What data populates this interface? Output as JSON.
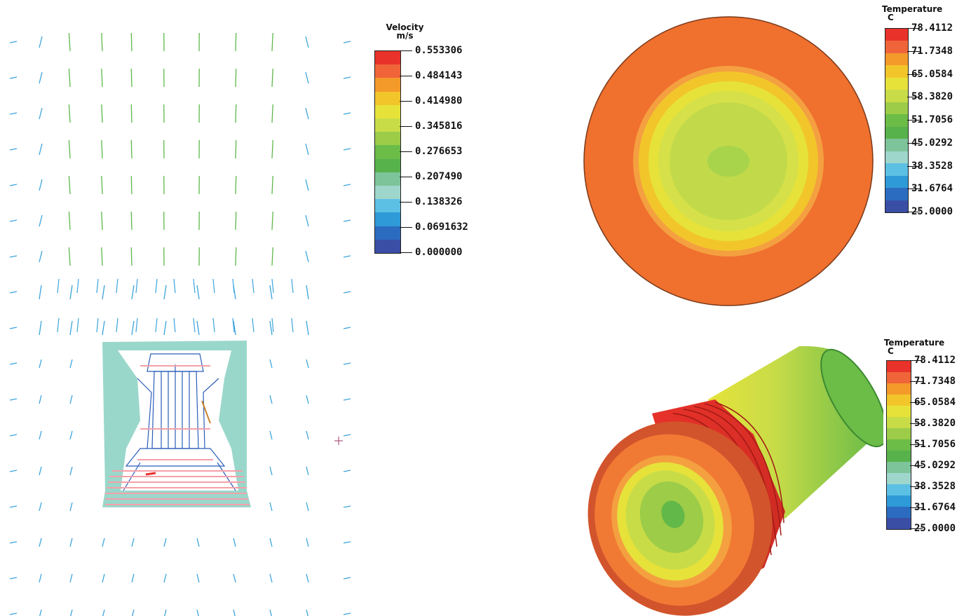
{
  "velocity_legend": {
    "title_line1": "Velocity",
    "title_line2": "m/s",
    "labels": [
      "0.553306",
      "0.484143",
      "0.414980",
      "0.345816",
      "0.276653",
      "0.207490",
      "0.138326",
      "0.0691632",
      "0.000000"
    ]
  },
  "temperature_legend_top": {
    "title_line1": "Temperature",
    "title_line2": "C",
    "labels": [
      "78.4112",
      "71.7348",
      "65.0584",
      "58.3820",
      "51.7056",
      "45.0292",
      "38.3528",
      "31.6764",
      "25.0000"
    ]
  },
  "temperature_legend_bottom": {
    "title_line1": "Temperature",
    "title_line2": "C",
    "labels": [
      "78.4112",
      "71.7348",
      "65.0584",
      "58.3820",
      "51.7056",
      "45.0292",
      "38.3528",
      "31.6764",
      "25.0000"
    ]
  },
  "colors": {
    "scale": [
      "#e8322a",
      "#f0643a",
      "#f49a2a",
      "#f2c62a",
      "#e6e23a",
      "#c8dc48",
      "#9ccc48",
      "#6cbc48",
      "#58b24c",
      "#7ec49a",
      "#9ed6cc",
      "#5cc0e4",
      "#2e9ad8",
      "#2c6cc0",
      "#3a4ea6"
    ],
    "disc_outer": "#f0702e",
    "flow_fluid": "#8fd3c5",
    "flow_mesh": "#2a5db8",
    "flow_hot": "#f4a0a8",
    "arrow_green": "#5cb84a",
    "arrow_blue": "#3aa4dc"
  }
}
